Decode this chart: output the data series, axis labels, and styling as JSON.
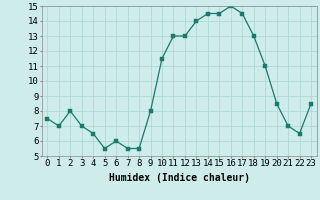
{
  "x": [
    0,
    1,
    2,
    3,
    4,
    5,
    6,
    7,
    8,
    9,
    10,
    11,
    12,
    13,
    14,
    15,
    16,
    17,
    18,
    19,
    20,
    21,
    22,
    23
  ],
  "y": [
    7.5,
    7.0,
    8.0,
    7.0,
    6.5,
    5.5,
    6.0,
    5.5,
    5.5,
    8.0,
    11.5,
    13.0,
    13.0,
    14.0,
    14.5,
    14.5,
    15.0,
    14.5,
    13.0,
    11.0,
    8.5,
    7.0,
    6.5,
    8.5
  ],
  "line_color": "#1a7a6e",
  "marker_color": "#1a7a6e",
  "bg_color": "#cdecea",
  "grid_color": "#b0d8d4",
  "xlabel": "Humidex (Indice chaleur)",
  "ylim": [
    5,
    15
  ],
  "xlim_min": -0.5,
  "xlim_max": 23.5,
  "yticks": [
    5,
    6,
    7,
    8,
    9,
    10,
    11,
    12,
    13,
    14,
    15
  ],
  "xticks": [
    0,
    1,
    2,
    3,
    4,
    5,
    6,
    7,
    8,
    9,
    10,
    11,
    12,
    13,
    14,
    15,
    16,
    17,
    18,
    19,
    20,
    21,
    22,
    23
  ],
  "xtick_labels": [
    "0",
    "1",
    "2",
    "3",
    "4",
    "5",
    "6",
    "7",
    "8",
    "9",
    "10",
    "11",
    "12",
    "13",
    "14",
    "15",
    "16",
    "17",
    "18",
    "19",
    "20",
    "21",
    "22",
    "23"
  ],
  "linewidth": 0.9,
  "markersize": 2.5,
  "xlabel_fontsize": 7,
  "tick_fontsize": 6.5
}
